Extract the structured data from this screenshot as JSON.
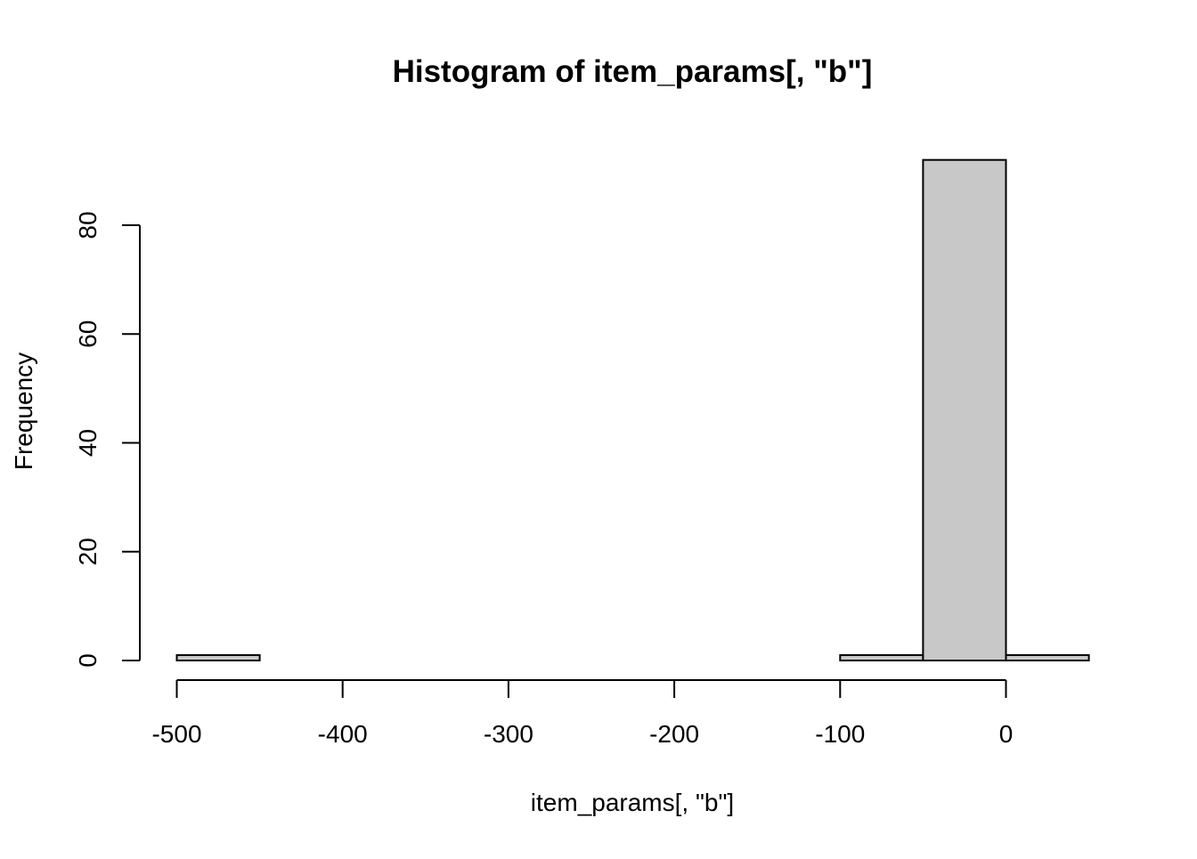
{
  "chart_data": {
    "type": "bar",
    "title": "Histogram of item_params[, \"b\"]",
    "xlabel": "item_params[, \"b\"]",
    "ylabel": "Frequency",
    "xlim": [
      -500,
      50
    ],
    "ylim": [
      0,
      92
    ],
    "x_ticks": [
      -500,
      -400,
      -300,
      -200,
      -100,
      0
    ],
    "x_tick_labels": [
      "-500",
      "-400",
      "-300",
      "-200",
      "-100",
      "0"
    ],
    "y_ticks": [
      0,
      20,
      40,
      60,
      80
    ],
    "y_tick_labels": [
      "0",
      "20",
      "40",
      "60",
      "80"
    ],
    "bins": [
      {
        "x0": -500,
        "x1": -450,
        "count": 1
      },
      {
        "x0": -450,
        "x1": -400,
        "count": 0
      },
      {
        "x0": -400,
        "x1": -350,
        "count": 0
      },
      {
        "x0": -350,
        "x1": -300,
        "count": 0
      },
      {
        "x0": -300,
        "x1": -250,
        "count": 0
      },
      {
        "x0": -250,
        "x1": -200,
        "count": 0
      },
      {
        "x0": -200,
        "x1": -150,
        "count": 0
      },
      {
        "x0": -150,
        "x1": -100,
        "count": 0
      },
      {
        "x0": -100,
        "x1": -50,
        "count": 1
      },
      {
        "x0": -50,
        "x1": 0,
        "count": 92
      },
      {
        "x0": 0,
        "x1": 50,
        "count": 1
      }
    ],
    "bar_color": "#c8c8c8",
    "grid": false
  }
}
